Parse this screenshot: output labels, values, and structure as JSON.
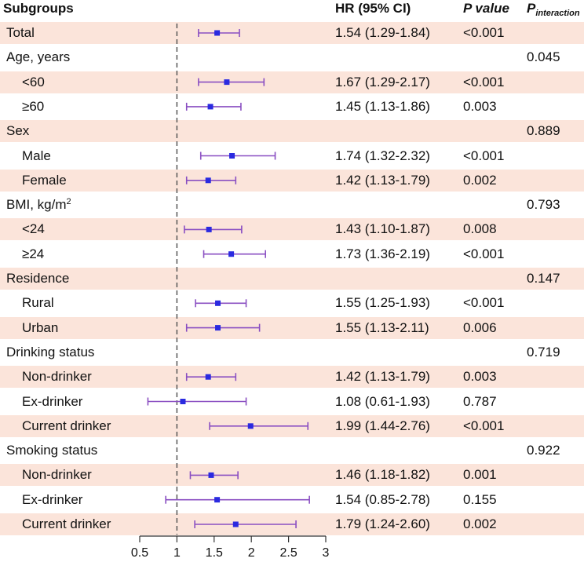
{
  "headers": {
    "subgroups": "Subgroups",
    "hr": "HR (95% CI)",
    "p_value": "P value",
    "p_interaction_main": "P",
    "p_interaction_sub": "interaction"
  },
  "chart_data": {
    "type": "forest",
    "reference_line": 1,
    "xlim": [
      0.5,
      3
    ],
    "xticks": [
      0.5,
      1,
      1.5,
      2,
      2.5,
      3
    ],
    "xtick_labels": [
      "0.5",
      "1",
      "1.5",
      "2",
      "2.5",
      "3"
    ],
    "grid": false,
    "colors": {
      "point": "#2a2ae0",
      "ci": "#8a4fc2",
      "shade": "#fbe4da",
      "refline": "#555555"
    },
    "rows": [
      {
        "label": "Total",
        "group": true,
        "shaded": true,
        "hr": 1.54,
        "lo": 1.29,
        "hi": 1.84,
        "hr_text": "1.54 (1.29-1.84)",
        "p": "<0.001",
        "p_int": ""
      },
      {
        "label": "Age, years",
        "group": true,
        "shaded": false,
        "hr": null,
        "hr_text": "",
        "p": "",
        "p_int": "0.045"
      },
      {
        "label": "<60",
        "group": false,
        "shaded": true,
        "hr": 1.67,
        "lo": 1.29,
        "hi": 2.17,
        "hr_text": "1.67 (1.29-2.17)",
        "p": "<0.001",
        "p_int": ""
      },
      {
        "label": "≥60",
        "group": false,
        "shaded": false,
        "hr": 1.45,
        "lo": 1.13,
        "hi": 1.86,
        "hr_text": "1.45 (1.13-1.86)",
        "p": "0.003",
        "p_int": ""
      },
      {
        "label": "Sex",
        "group": true,
        "shaded": true,
        "hr": null,
        "hr_text": "",
        "p": "",
        "p_int": "0.889"
      },
      {
        "label": "Male",
        "group": false,
        "shaded": false,
        "hr": 1.74,
        "lo": 1.32,
        "hi": 2.32,
        "hr_text": "1.74 (1.32-2.32)",
        "p": "<0.001",
        "p_int": ""
      },
      {
        "label": "Female",
        "group": false,
        "shaded": true,
        "hr": 1.42,
        "lo": 1.13,
        "hi": 1.79,
        "hr_text": "1.42 (1.13-1.79)",
        "p": "0.002",
        "p_int": ""
      },
      {
        "label": "BMI, kg/m",
        "label_sup": "2",
        "group": true,
        "shaded": false,
        "hr": null,
        "hr_text": "",
        "p": "",
        "p_int": "0.793"
      },
      {
        "label": "<24",
        "group": false,
        "shaded": true,
        "hr": 1.43,
        "lo": 1.1,
        "hi": 1.87,
        "hr_text": "1.43 (1.10-1.87)",
        "p": "0.008",
        "p_int": ""
      },
      {
        "label": "≥24",
        "group": false,
        "shaded": false,
        "hr": 1.73,
        "lo": 1.36,
        "hi": 2.19,
        "hr_text": "1.73 (1.36-2.19)",
        "p": "<0.001",
        "p_int": ""
      },
      {
        "label": "Residence",
        "group": true,
        "shaded": true,
        "hr": null,
        "hr_text": "",
        "p": "",
        "p_int": "0.147"
      },
      {
        "label": "Rural",
        "group": false,
        "shaded": false,
        "hr": 1.55,
        "lo": 1.25,
        "hi": 1.93,
        "hr_text": "1.55 (1.25-1.93)",
        "p": "<0.001",
        "p_int": ""
      },
      {
        "label": "Urban",
        "group": false,
        "shaded": true,
        "hr": 1.55,
        "lo": 1.13,
        "hi": 2.11,
        "hr_text": "1.55 (1.13-2.11)",
        "p": "0.006",
        "p_int": ""
      },
      {
        "label": "Drinking status",
        "group": true,
        "shaded": false,
        "hr": null,
        "hr_text": "",
        "p": "",
        "p_int": "0.719"
      },
      {
        "label": "Non-drinker",
        "group": false,
        "shaded": true,
        "hr": 1.42,
        "lo": 1.13,
        "hi": 1.79,
        "hr_text": "1.42 (1.13-1.79)",
        "p": "0.003",
        "p_int": ""
      },
      {
        "label": "Ex-drinker",
        "group": false,
        "shaded": false,
        "hr": 1.08,
        "lo": 0.61,
        "hi": 1.93,
        "hr_text": "1.08 (0.61-1.93)",
        "p": "0.787",
        "p_int": ""
      },
      {
        "label": "Current drinker",
        "group": false,
        "shaded": true,
        "hr": 1.99,
        "lo": 1.44,
        "hi": 2.76,
        "hr_text": "1.99 (1.44-2.76)",
        "p": "<0.001",
        "p_int": ""
      },
      {
        "label": "Smoking status",
        "group": true,
        "shaded": false,
        "hr": null,
        "hr_text": "",
        "p": "",
        "p_int": "0.922"
      },
      {
        "label": "Non-drinker",
        "group": false,
        "shaded": true,
        "hr": 1.46,
        "lo": 1.18,
        "hi": 1.82,
        "hr_text": "1.46 (1.18-1.82)",
        "p": "0.001",
        "p_int": ""
      },
      {
        "label": "Ex-drinker",
        "group": false,
        "shaded": false,
        "hr": 1.54,
        "lo": 0.85,
        "hi": 2.78,
        "hr_text": "1.54 (0.85-2.78)",
        "p": "0.155",
        "p_int": ""
      },
      {
        "label": "Current drinker",
        "group": false,
        "shaded": true,
        "hr": 1.79,
        "lo": 1.24,
        "hi": 2.6,
        "hr_text": "1.79 (1.24-2.60)",
        "p": "0.002",
        "p_int": ""
      }
    ]
  }
}
